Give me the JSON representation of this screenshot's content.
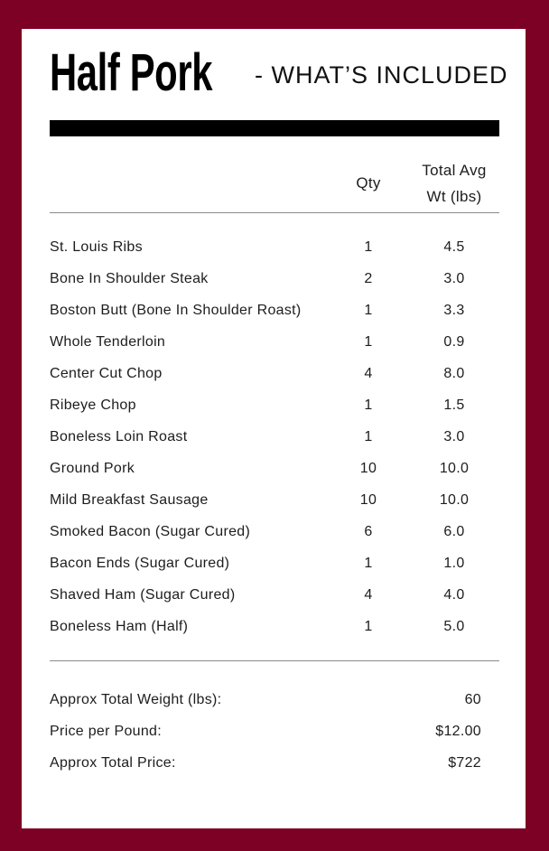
{
  "header": {
    "title": "Half Pork",
    "subtitle": "- WHAT’S INCLUDED"
  },
  "table": {
    "columns": {
      "item": "",
      "qty": "Qty",
      "wt_line1": "Total Avg",
      "wt_line2": "Wt (lbs)"
    },
    "rows": [
      {
        "item": "St. Louis Ribs",
        "qty": "1",
        "wt": "4.5"
      },
      {
        "item": "Bone In Shoulder Steak",
        "qty": "2",
        "wt": "3.0"
      },
      {
        "item": "Boston Butt (Bone In Shoulder Roast)",
        "qty": "1",
        "wt": "3.3"
      },
      {
        "item": "Whole Tenderloin",
        "qty": "1",
        "wt": "0.9"
      },
      {
        "item": "Center Cut Chop",
        "qty": "4",
        "wt": "8.0"
      },
      {
        "item": "Ribeye Chop",
        "qty": "1",
        "wt": "1.5"
      },
      {
        "item": "Boneless Loin Roast",
        "qty": "1",
        "wt": "3.0"
      },
      {
        "item": "Ground Pork",
        "qty": "10",
        "wt": "10.0"
      },
      {
        "item": "Mild Breakfast Sausage",
        "qty": "10",
        "wt": "10.0"
      },
      {
        "item": "Smoked Bacon (Sugar Cured)",
        "qty": "6",
        "wt": "6.0"
      },
      {
        "item": "Bacon Ends (Sugar Cured)",
        "qty": "1",
        "wt": "1.0"
      },
      {
        "item": "Shaved Ham (Sugar Cured)",
        "qty": "4",
        "wt": "4.0"
      },
      {
        "item": "Boneless Ham (Half)",
        "qty": "1",
        "wt": "5.0"
      }
    ]
  },
  "summary": {
    "rows": [
      {
        "label": "Approx Total Weight (lbs):",
        "value": "60"
      },
      {
        "label": "Price per Pound:",
        "value": "$12.00"
      },
      {
        "label": "Approx Total Price:",
        "value": "$722"
      }
    ]
  },
  "colors": {
    "frame": "#7d0124",
    "bar": "#000000",
    "text": "#1d1d1d",
    "line": "#8a8a8a"
  }
}
